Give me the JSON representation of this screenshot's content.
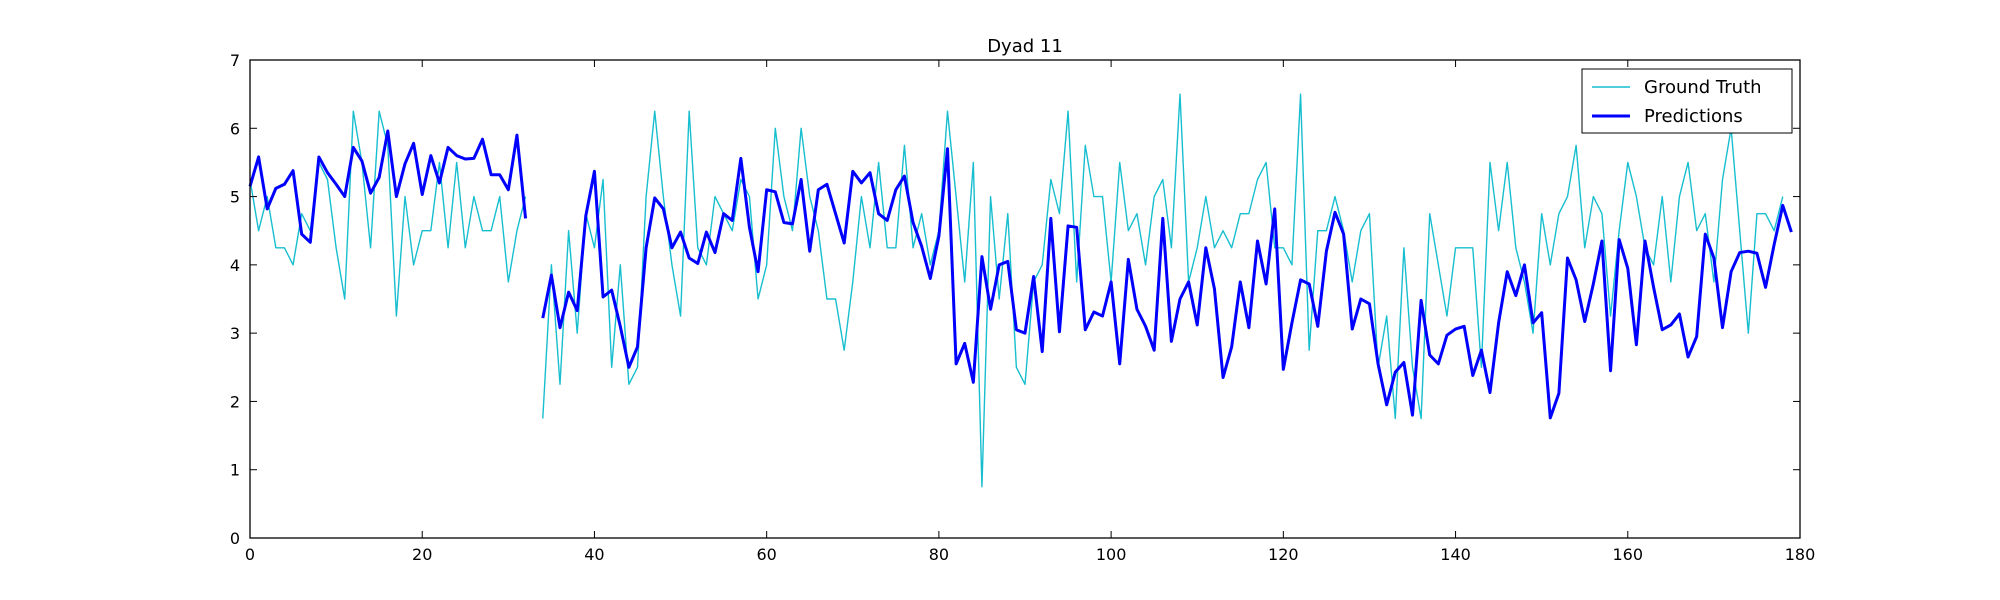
{
  "chart_data": {
    "type": "line",
    "title": "Dyad 11",
    "xlabel": "",
    "ylabel": "",
    "xlim": [
      0,
      180
    ],
    "ylim": [
      0,
      7
    ],
    "xticks": [
      "0",
      "20",
      "40",
      "60",
      "80",
      "100",
      "120",
      "140",
      "160",
      "180"
    ],
    "yticks": [
      "0",
      "1",
      "2",
      "3",
      "4",
      "5",
      "6",
      "7"
    ],
    "grid": false,
    "legend_position": "top-right",
    "series": [
      {
        "name": "Ground Truth",
        "color": "#17becf",
        "style": "thin",
        "x_start": 0,
        "segments": [
          [
            5.25,
            4.5,
            5.0,
            4.25,
            4.25,
            4.0,
            4.75,
            4.5,
            5.5,
            5.25,
            4.25,
            3.5,
            6.25,
            5.5,
            4.25,
            6.25,
            5.75,
            3.25,
            5.0,
            4.0,
            4.5,
            4.5,
            5.5,
            4.25,
            5.5,
            4.25,
            5.0,
            4.5,
            4.5,
            5.0,
            3.75,
            4.5,
            5.0
          ],
          [
            1.75,
            4.0,
            2.25,
            4.5,
            3.0,
            4.75,
            4.25,
            5.25,
            2.5,
            4.0,
            2.25,
            2.5,
            5.0,
            6.25,
            5.0,
            4.0,
            3.25,
            6.25,
            4.25,
            4.0,
            5.0,
            4.75,
            4.5,
            5.25,
            5.0,
            3.5,
            4.0,
            6.0,
            5.0,
            4.5,
            6.0,
            5.0,
            4.5,
            3.5,
            3.5,
            2.75,
            3.75,
            5.0,
            4.25,
            5.5,
            4.25,
            4.25,
            5.75,
            4.25,
            4.75,
            4.0,
            4.5,
            6.25,
            5.0,
            3.75,
            5.5,
            0.75,
            5.0,
            3.5,
            4.75,
            2.5,
            2.25,
            3.75,
            4.0,
            5.25,
            4.75,
            6.25,
            3.75,
            5.75,
            5.0,
            5.0,
            3.75,
            5.5,
            4.5,
            4.75,
            4.0,
            5.0,
            5.25,
            4.25,
            6.5,
            3.75,
            4.25,
            5.0,
            4.25,
            4.5,
            4.25,
            4.75,
            4.75,
            5.25,
            5.5,
            4.25,
            4.25,
            4.0,
            6.5,
            2.75,
            4.5,
            4.5,
            5.0,
            4.5,
            3.75,
            4.5,
            4.75,
            2.5,
            3.25,
            1.75,
            4.25,
            2.5,
            1.75,
            4.75,
            4.0,
            3.25,
            4.25,
            4.25,
            4.25,
            2.5,
            5.5,
            4.5,
            5.5,
            4.25,
            3.75,
            3.0,
            4.75,
            4.0,
            4.75,
            5.0,
            5.75,
            4.25,
            5.0,
            4.75,
            3.25,
            4.5,
            5.5,
            5.0,
            4.25,
            4.0,
            5.0,
            3.75,
            5.0,
            5.5,
            4.5,
            4.75,
            3.75,
            5.25,
            6.0,
            4.5,
            3.0,
            4.75,
            4.75,
            4.5,
            5.0
          ]
        ],
        "segment_starts": [
          0,
          34
        ]
      },
      {
        "name": "Predictions",
        "color": "#0000ff",
        "style": "thick",
        "segments": [
          [
            5.15,
            5.58,
            4.82,
            5.12,
            5.18,
            5.38,
            4.45,
            4.33,
            5.58,
            5.35,
            5.18,
            5.0,
            5.72,
            5.52,
            5.05,
            5.28,
            5.96,
            5.0,
            5.48,
            5.78,
            5.03,
            5.6,
            5.2,
            5.72,
            5.6,
            5.55,
            5.56,
            5.84,
            5.32,
            5.32,
            5.1,
            5.9,
            4.68
          ],
          [
            3.22,
            3.85,
            3.08,
            3.6,
            3.33,
            4.72,
            5.37,
            3.53,
            3.63,
            3.1,
            2.5,
            2.8,
            4.25,
            4.98,
            4.82,
            4.25,
            4.48,
            4.1,
            4.02,
            4.48,
            4.18,
            4.75,
            4.65,
            5.56,
            4.55,
            3.9,
            5.1,
            5.07,
            4.62,
            4.6,
            5.25,
            4.2,
            5.1,
            5.18,
            4.75,
            4.32,
            5.37,
            5.2,
            5.35,
            4.75,
            4.65,
            5.1,
            5.3,
            4.62,
            4.27,
            3.8,
            4.42,
            5.7,
            2.55,
            2.85,
            2.28,
            4.12,
            3.35,
            4.0,
            4.05,
            3.05,
            3.0,
            3.83,
            2.73,
            4.68,
            3.02,
            4.57,
            4.55,
            3.05,
            3.31,
            3.25,
            3.75,
            2.55,
            4.08,
            3.35,
            3.1,
            2.75,
            4.68,
            2.88,
            3.5,
            3.75,
            3.12,
            4.25,
            3.65,
            2.35,
            2.8,
            3.75,
            3.08,
            4.35,
            3.72,
            4.82,
            2.47,
            3.15,
            3.78,
            3.72,
            3.1,
            4.2,
            4.77,
            4.45,
            3.06,
            3.5,
            3.43,
            2.55,
            1.95,
            2.43,
            2.57,
            1.8,
            3.48,
            2.68,
            2.55,
            2.97,
            3.06,
            3.1,
            2.38,
            2.75,
            2.13,
            3.15,
            3.9,
            3.55,
            4.0,
            3.15,
            3.3,
            1.76,
            2.12,
            4.1,
            3.78,
            3.17,
            3.72,
            4.35,
            2.45,
            4.37,
            3.95,
            2.83,
            4.35,
            3.67,
            3.05,
            3.12,
            3.28,
            2.65,
            2.95,
            4.45,
            4.1,
            3.08,
            3.9,
            4.18,
            4.2,
            4.17,
            3.67,
            4.3,
            4.87,
            4.48
          ]
        ],
        "segment_starts": [
          0,
          34
        ]
      }
    ]
  }
}
